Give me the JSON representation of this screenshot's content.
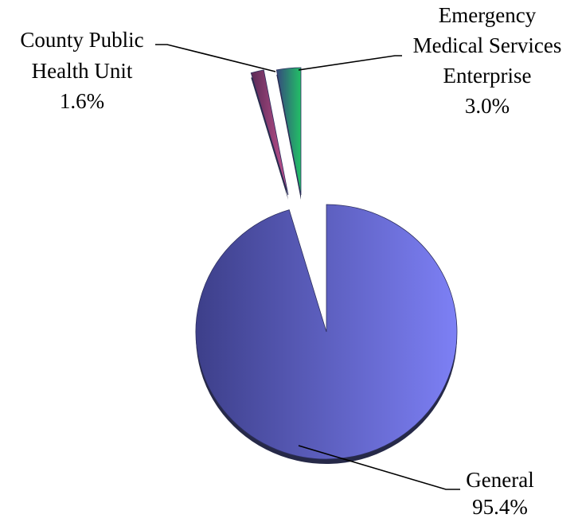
{
  "chart_data": {
    "type": "pie",
    "title": "",
    "slices": [
      {
        "label_lines": [
          "General"
        ],
        "value": 95.4,
        "value_text": "95.4%",
        "color": "#6b6ee0",
        "color_dark": "#3d3f8a",
        "color_light": "#7d80f5"
      },
      {
        "label_lines": [
          "County Public",
          "Health Unit"
        ],
        "value": 1.6,
        "value_text": "1.6%",
        "color": "#a0467e",
        "color_dark": "#5a2a56",
        "color_light": "#c2538f"
      },
      {
        "label_lines": [
          "Emergency",
          "Medical Services",
          "Enterprise"
        ],
        "value": 3.0,
        "value_text": "3.0%",
        "color": "#1fae5c",
        "color_dark": "#36497d",
        "color_light": "#22c066"
      }
    ],
    "legend": "none",
    "data_labels": "outside with leader lines"
  }
}
